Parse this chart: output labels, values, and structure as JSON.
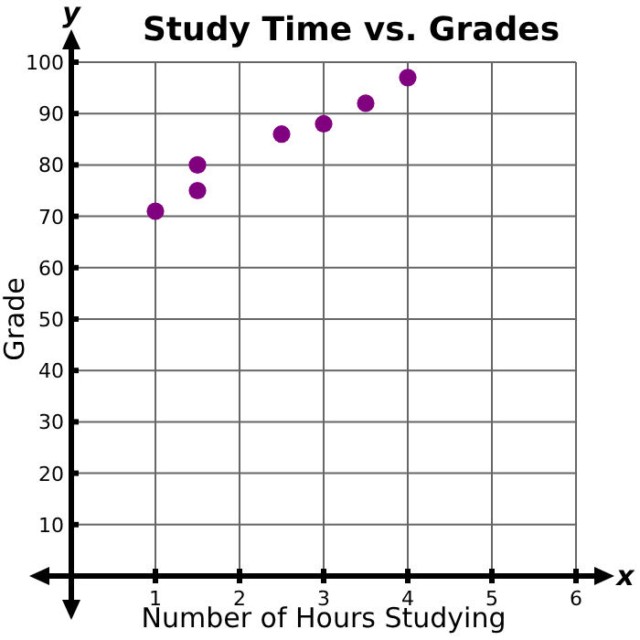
{
  "chart_data": {
    "type": "scatter",
    "title": "Study Time vs. Grades",
    "xlabel": "Number of Hours Studying",
    "ylabel": "Grade",
    "annotations": [
      "x",
      "y"
    ],
    "series": [
      {
        "color": "#800080",
        "x": [
          1,
          1.5,
          1.5,
          2.5,
          3,
          3.5,
          4
        ],
        "values": [
          71,
          80,
          75,
          86,
          88,
          92,
          97
        ]
      }
    ],
    "xlim": [
      0,
      6
    ],
    "xticks": [
      1,
      2,
      3,
      4,
      5,
      6
    ],
    "ylim": [
      0,
      100
    ],
    "yticks": [
      10,
      20,
      30,
      40,
      50,
      60,
      70,
      80,
      90,
      100
    ],
    "grid": true,
    "marker": "circle"
  }
}
